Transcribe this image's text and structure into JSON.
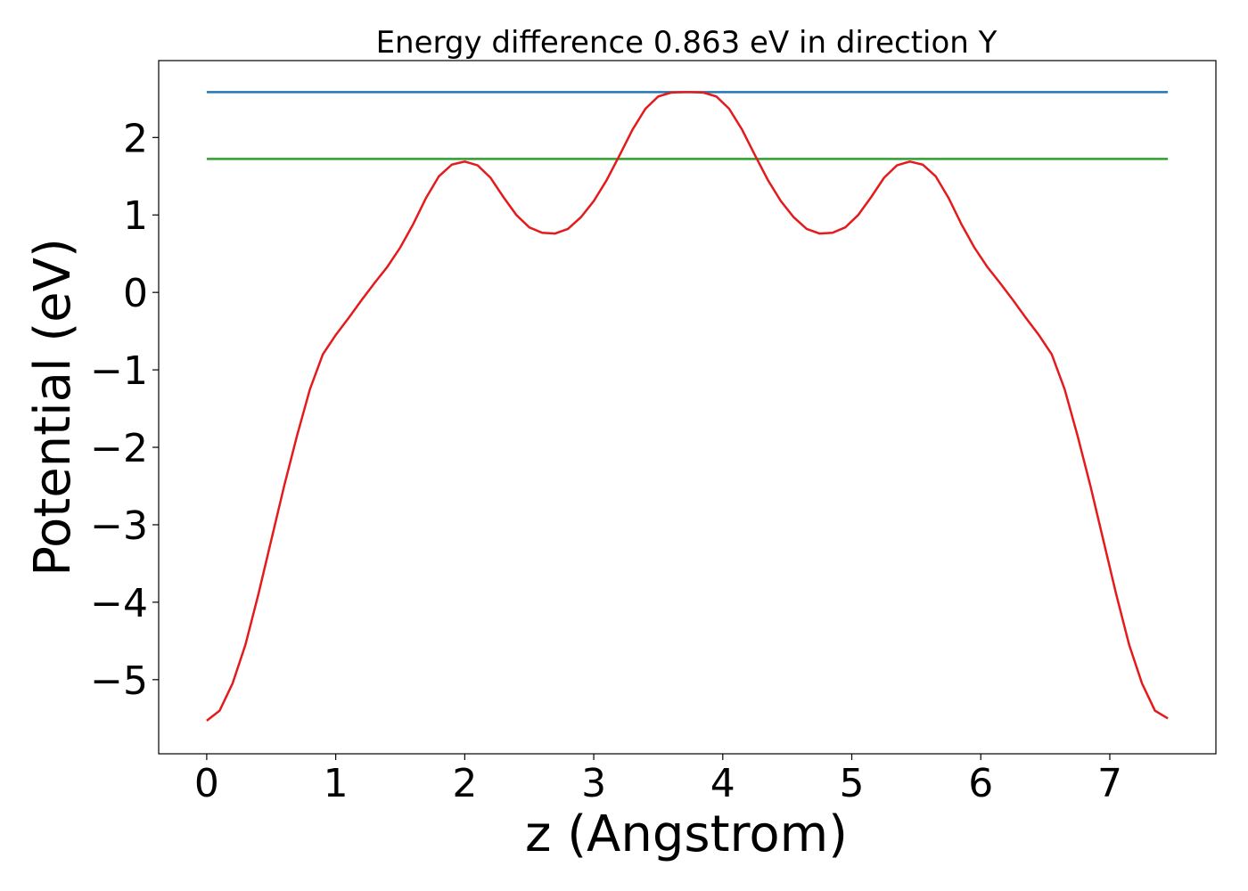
{
  "chart_data": {
    "type": "line",
    "title": "Energy difference 0.863 eV in direction Y",
    "xlabel": "z (Angstrom)",
    "ylabel": "Potential (eV)",
    "xlim": [
      -0.3725,
      7.8225
    ],
    "ylim": [
      -5.957,
      2.993
    ],
    "xticks": [
      0,
      1,
      2,
      3,
      4,
      5,
      6,
      7
    ],
    "yticks": [
      {
        "value": -5,
        "label": "−5"
      },
      {
        "value": -4,
        "label": "−4"
      },
      {
        "value": -3,
        "label": "−3"
      },
      {
        "value": -2,
        "label": "−2"
      },
      {
        "value": -1,
        "label": "−1"
      },
      0,
      1,
      2
    ],
    "series": [
      {
        "color": "#1f77b4",
        "x": [
          0,
          7.45
        ],
        "values": [
          2.586,
          2.586
        ]
      },
      {
        "color": "#2ca02c",
        "x": [
          0,
          7.45
        ],
        "values": [
          1.723,
          1.723
        ]
      },
      {
        "color": "#e41a1c",
        "x": [
          0,
          0.1,
          0.2,
          0.3,
          0.4,
          0.5,
          0.6,
          0.7,
          0.8,
          0.9,
          1.0,
          1.1,
          1.2,
          1.3,
          1.4,
          1.5,
          1.6,
          1.7,
          1.8,
          1.9,
          2.0,
          2.1,
          2.2,
          2.3,
          2.4,
          2.5,
          2.6,
          2.7,
          2.8,
          2.9,
          3.0,
          3.1,
          3.2,
          3.3,
          3.4,
          3.5,
          3.6,
          3.7,
          3.75,
          3.85,
          3.95,
          4.05,
          4.15,
          4.25,
          4.35,
          4.45,
          4.55,
          4.65,
          4.75,
          4.85,
          4.95,
          5.05,
          5.15,
          5.25,
          5.35,
          5.45,
          5.55,
          5.65,
          5.75,
          5.85,
          5.95,
          6.05,
          6.15,
          6.25,
          6.35,
          6.45,
          6.55,
          6.65,
          6.75,
          6.85,
          6.95,
          7.05,
          7.15,
          7.25,
          7.35,
          7.45
        ],
        "values": [
          -5.53,
          -5.4,
          -5.05,
          -4.55,
          -3.9,
          -3.2,
          -2.5,
          -1.85,
          -1.25,
          -0.8,
          -0.55,
          -0.33,
          -0.1,
          0.12,
          0.33,
          0.58,
          0.88,
          1.22,
          1.5,
          1.65,
          1.69,
          1.64,
          1.48,
          1.23,
          1.0,
          0.84,
          0.77,
          0.76,
          0.82,
          0.97,
          1.18,
          1.45,
          1.77,
          2.1,
          2.37,
          2.53,
          2.58,
          2.586,
          2.586,
          2.58,
          2.53,
          2.37,
          2.1,
          1.77,
          1.45,
          1.18,
          0.97,
          0.82,
          0.76,
          0.77,
          0.84,
          1.0,
          1.23,
          1.48,
          1.64,
          1.69,
          1.65,
          1.5,
          1.22,
          0.88,
          0.58,
          0.33,
          0.12,
          -0.1,
          -0.33,
          -0.55,
          -0.8,
          -1.25,
          -1.85,
          -2.5,
          -3.2,
          -3.9,
          -4.55,
          -5.05,
          -5.4,
          -5.5
        ]
      }
    ]
  }
}
